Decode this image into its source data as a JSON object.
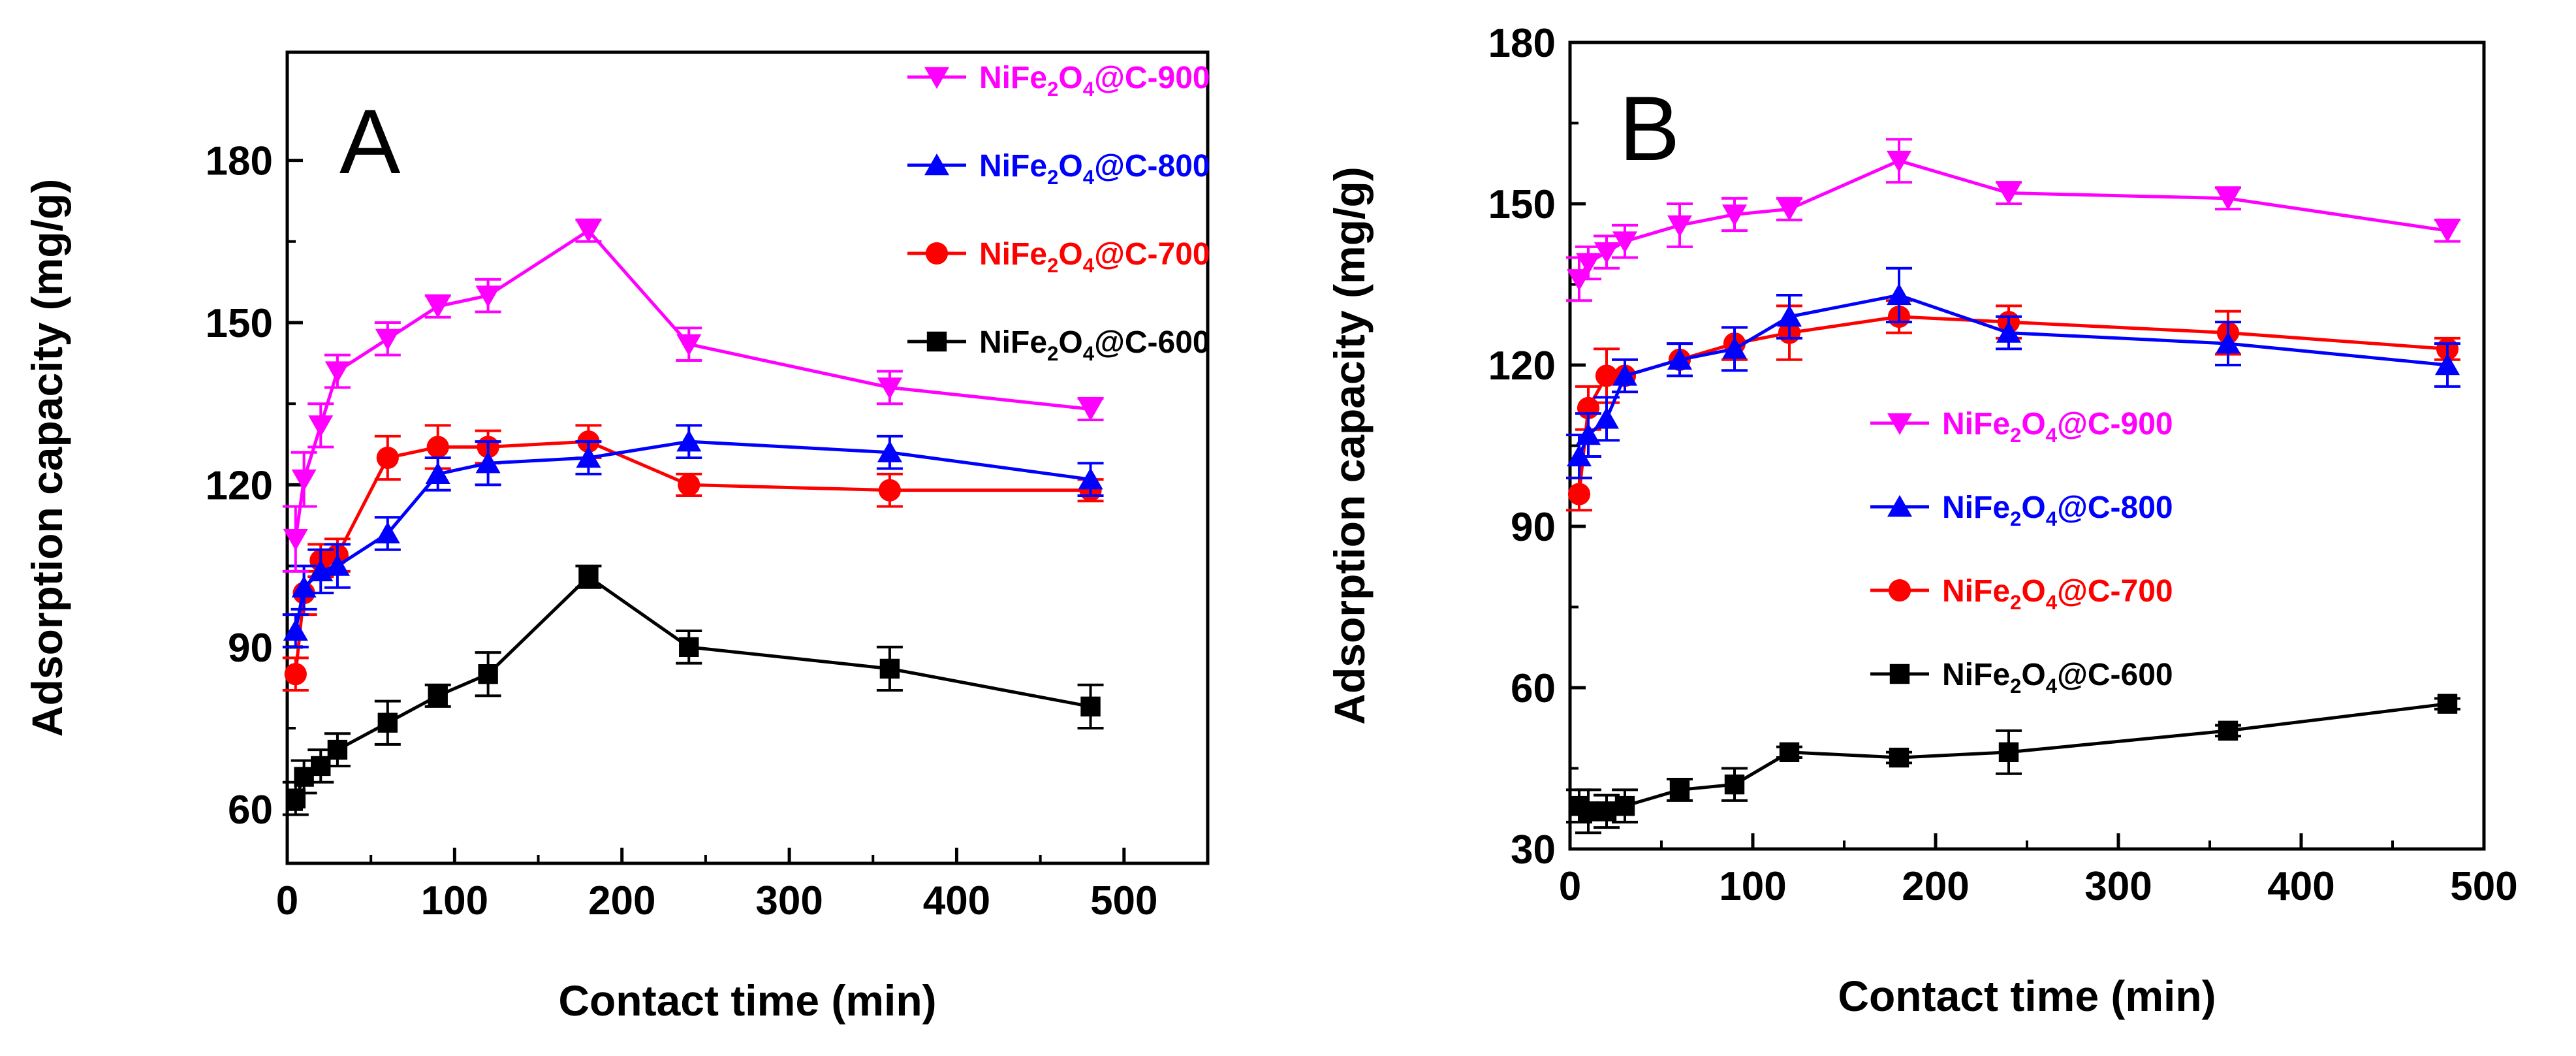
{
  "chart_data": [
    {
      "type": "line",
      "panel_label": "A",
      "xlabel": "Contact time (min)",
      "ylabel": "Adsorption capacity (mg/g)",
      "xlim": [
        0,
        550
      ],
      "ylim": [
        50,
        200
      ],
      "xticks": [
        0,
        100,
        200,
        300,
        400,
        500
      ],
      "yticks": [
        60,
        90,
        120,
        150,
        180
      ],
      "legend_position": "top-right",
      "x": [
        5,
        10,
        20,
        30,
        60,
        90,
        120,
        180,
        240,
        360,
        480
      ],
      "series": [
        {
          "name_base": "NiFe",
          "name_sub1": "2",
          "name_mid": "O",
          "name_sub2": "4",
          "name_tail": "@C-900",
          "color": "#ff00ff",
          "marker": "triangle-down",
          "values": [
            110,
            121,
            131,
            141,
            147,
            153,
            155,
            167,
            146,
            138,
            134
          ],
          "errors": [
            6,
            5,
            4,
            3,
            3,
            2,
            3,
            2,
            3,
            3,
            2
          ]
        },
        {
          "name_base": "NiFe",
          "name_sub1": "2",
          "name_mid": "O",
          "name_sub2": "4",
          "name_tail": "@C-800",
          "color": "#0000ff",
          "marker": "triangle-up",
          "values": [
            93,
            101,
            104,
            105,
            111,
            122,
            124,
            125,
            128,
            126,
            121
          ],
          "errors": [
            3,
            4,
            4,
            4,
            3,
            3,
            4,
            3,
            3,
            3,
            3
          ]
        },
        {
          "name_base": "NiFe",
          "name_sub1": "2",
          "name_mid": "O",
          "name_sub2": "4",
          "name_tail": "@C-700",
          "color": "#ff0000",
          "marker": "circle",
          "values": [
            85,
            100,
            106,
            107,
            125,
            127,
            127,
            128,
            120,
            119,
            119
          ],
          "errors": [
            3,
            4,
            3,
            3,
            4,
            4,
            3,
            3,
            2,
            3,
            2
          ]
        },
        {
          "name_base": "NiFe",
          "name_sub1": "2",
          "name_mid": "O",
          "name_sub2": "4",
          "name_tail": "@C-600",
          "color": "#000000",
          "marker": "square",
          "values": [
            62,
            66,
            68,
            71,
            76,
            81,
            85,
            103,
            90,
            86,
            79
          ],
          "errors": [
            3,
            3,
            3,
            3,
            4,
            2,
            4,
            2,
            3,
            4,
            4
          ]
        }
      ]
    },
    {
      "type": "line",
      "panel_label": "B",
      "xlabel": "Contact time (min)",
      "ylabel": "Adsorption capacity (mg/g)",
      "xlim": [
        0,
        500
      ],
      "ylim": [
        30,
        180
      ],
      "xticks": [
        0,
        100,
        200,
        300,
        400,
        500
      ],
      "yticks": [
        30,
        60,
        90,
        120,
        150,
        180
      ],
      "legend_position": "center-right",
      "x": [
        5,
        10,
        20,
        30,
        60,
        90,
        120,
        180,
        240,
        360,
        480
      ],
      "series": [
        {
          "name_base": "NiFe",
          "name_sub1": "2",
          "name_mid": "O",
          "name_sub2": "4",
          "name_tail": "@C-900",
          "color": "#ff00ff",
          "marker": "triangle-down",
          "values": [
            136,
            139,
            141,
            143,
            146,
            148,
            149,
            158,
            152,
            151,
            145
          ],
          "errors": [
            4,
            3,
            3,
            3,
            4,
            3,
            2,
            4,
            2,
            2,
            2
          ]
        },
        {
          "name_base": "NiFe",
          "name_sub1": "2",
          "name_mid": "O",
          "name_sub2": "4",
          "name_tail": "@C-800",
          "color": "#0000ff",
          "marker": "triangle-up",
          "values": [
            103,
            107,
            110,
            118,
            121,
            123,
            129,
            133,
            126,
            124,
            120
          ],
          "errors": [
            4,
            4,
            4,
            3,
            3,
            4,
            4,
            5,
            3,
            4,
            4
          ]
        },
        {
          "name_base": "NiFe",
          "name_sub1": "2",
          "name_mid": "O",
          "name_sub2": "4",
          "name_tail": "@C-700",
          "color": "#ff0000",
          "marker": "circle",
          "values": [
            96,
            112,
            118,
            118,
            121,
            124,
            126,
            129,
            128,
            126,
            123
          ],
          "errors": [
            3,
            4,
            5,
            3,
            3,
            3,
            5,
            3,
            3,
            4,
            2
          ]
        },
        {
          "name_base": "NiFe",
          "name_sub1": "2",
          "name_mid": "O",
          "name_sub2": "4",
          "name_tail": "@C-600",
          "color": "#000000",
          "marker": "square",
          "values": [
            38,
            37,
            37,
            38,
            41,
            42,
            48,
            47,
            48,
            52,
            57
          ],
          "errors": [
            3,
            4,
            3,
            3,
            2,
            3,
            1,
            1,
            4,
            1,
            1
          ]
        }
      ]
    }
  ]
}
